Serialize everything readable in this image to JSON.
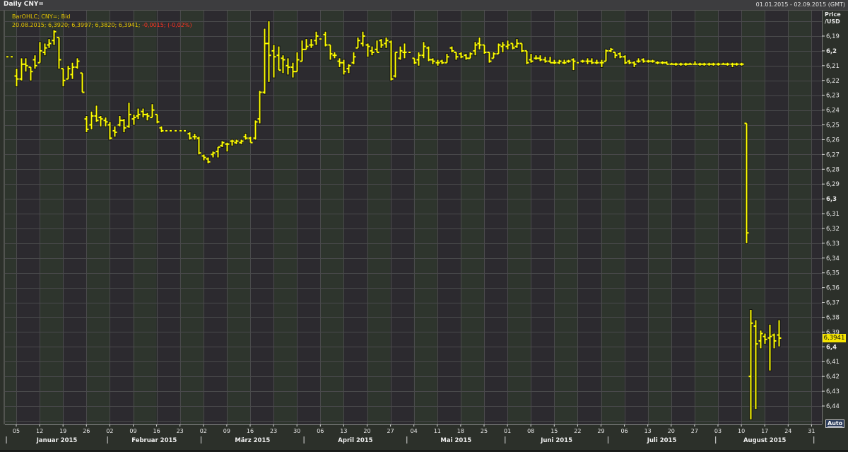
{
  "header": {
    "title": "Daily CNY=",
    "date_range": "01.01.2015 - 02.09.2015 (GMT)"
  },
  "legend": {
    "line1": "BarOHLC; CNY=; Bid",
    "line2_values": "20.08.2015; 6,3920; 6,3997; 6,3820; 6,3941;",
    "line2_change": "-0,0015; (-0,02%)"
  },
  "axis": {
    "title_line1": "Price",
    "title_line2": "/USD",
    "auto_button": "Auto",
    "last_price_label": "6,3941"
  },
  "colors": {
    "bar": "#ffff00",
    "change_negative": "#ff3322",
    "week_a": "#2c2a2f",
    "week_b": "#2e352d"
  },
  "chart_data": {
    "type": "ohlc",
    "title": "Daily CNY=",
    "ylabel": "Price /USD",
    "y_inverted": true,
    "ylim": [
      6.18,
      6.45
    ],
    "grid": true,
    "y_ticks": [
      "6,19",
      "6,2",
      "6,21",
      "6,22",
      "6,23",
      "6,24",
      "6,25",
      "6,26",
      "6,27",
      "6,28",
      "6,29",
      "6,3",
      "6,31",
      "6,32",
      "6,33",
      "6,34",
      "6,35",
      "6,36",
      "6,37",
      "6,38",
      "6,39",
      "6,4",
      "6,41",
      "6,42",
      "6,43",
      "6,44"
    ],
    "x_ticks": [
      "05",
      "12",
      "19",
      "26",
      "02",
      "09",
      "16",
      "23",
      "02",
      "09",
      "16",
      "23",
      "30",
      "06",
      "13",
      "20",
      "27",
      "04",
      "11",
      "18",
      "25",
      "01",
      "08",
      "15",
      "22",
      "29",
      "06",
      "13",
      "20",
      "27",
      "03",
      "10",
      "17",
      "24",
      "31"
    ],
    "months": [
      "Januar 2015",
      "Februar 2015",
      "März 2015",
      "April 2015",
      "Mai 2015",
      "Juni 2015",
      "Juli 2015",
      "August 2015"
    ],
    "ohlc_columns": [
      "date",
      "open",
      "high",
      "low",
      "close"
    ],
    "ohlc": [
      [
        "2015-01-01",
        6.204,
        6.204,
        6.204,
        6.204
      ],
      [
        "2015-01-02",
        6.204,
        6.204,
        6.204,
        6.204
      ],
      [
        "2015-01-05",
        6.217,
        6.224,
        6.212,
        6.219
      ],
      [
        "2015-01-06",
        6.219,
        6.22,
        6.205,
        6.209
      ],
      [
        "2015-01-07",
        6.209,
        6.214,
        6.205,
        6.21
      ],
      [
        "2015-01-08",
        6.211,
        6.22,
        6.211,
        6.214
      ],
      [
        "2015-01-09",
        6.206,
        6.212,
        6.203,
        6.21
      ],
      [
        "2015-01-12",
        6.208,
        6.208,
        6.194,
        6.2
      ],
      [
        "2015-01-13",
        6.201,
        6.203,
        6.195,
        6.198
      ],
      [
        "2015-01-14",
        6.196,
        6.198,
        6.192,
        6.195
      ],
      [
        "2015-01-15",
        6.193,
        6.196,
        6.186,
        6.187
      ],
      [
        "2015-01-16",
        6.191,
        6.212,
        6.191,
        6.206
      ],
      [
        "2015-01-19",
        6.212,
        6.224,
        6.212,
        6.22
      ],
      [
        "2015-01-20",
        6.219,
        6.219,
        6.21,
        6.212
      ],
      [
        "2015-01-21",
        6.216,
        6.219,
        6.208,
        6.211
      ],
      [
        "2015-01-22",
        6.211,
        6.212,
        6.205,
        6.207
      ],
      [
        "2015-01-23",
        6.215,
        6.228,
        6.215,
        6.228
      ],
      [
        "2015-01-26",
        6.246,
        6.255,
        6.244,
        6.253
      ],
      [
        "2015-01-27",
        6.25,
        6.253,
        6.241,
        6.244
      ],
      [
        "2015-01-28",
        6.244,
        6.248,
        6.237,
        6.247
      ],
      [
        "2015-01-29",
        6.245,
        6.251,
        6.244,
        6.246
      ],
      [
        "2015-01-30",
        6.247,
        6.251,
        6.245,
        6.248
      ],
      [
        "2015-02-02",
        6.25,
        6.26,
        6.248,
        6.259
      ],
      [
        "2015-02-03",
        6.254,
        6.258,
        6.251,
        6.255
      ],
      [
        "2015-02-04",
        6.25,
        6.251,
        6.244,
        6.247
      ],
      [
        "2015-02-05",
        6.247,
        6.255,
        6.246,
        6.252
      ],
      [
        "2015-02-06",
        6.251,
        6.252,
        6.235,
        6.243
      ],
      [
        "2015-02-09",
        6.246,
        6.25,
        6.243,
        6.245
      ],
      [
        "2015-02-10",
        6.244,
        6.246,
        6.239,
        6.243
      ],
      [
        "2015-02-11",
        6.241,
        6.245,
        6.239,
        6.243
      ],
      [
        "2015-02-12",
        6.243,
        6.247,
        6.242,
        6.244
      ],
      [
        "2015-02-13",
        6.245,
        6.245,
        6.236,
        6.24
      ],
      [
        "2015-02-16",
        6.243,
        6.249,
        6.243,
        6.248
      ],
      [
        "2015-02-17",
        6.252,
        6.255,
        6.251,
        6.254
      ],
      [
        "2015-02-18",
        6.254,
        6.254,
        6.254,
        6.254
      ],
      [
        "2015-02-19",
        6.254,
        6.254,
        6.254,
        6.254
      ],
      [
        "2015-02-20",
        6.254,
        6.254,
        6.254,
        6.254
      ],
      [
        "2015-02-23",
        6.254,
        6.254,
        6.254,
        6.254
      ],
      [
        "2015-02-24",
        6.254,
        6.254,
        6.254,
        6.254
      ],
      [
        "2015-02-25",
        6.256,
        6.26,
        6.255,
        6.259
      ],
      [
        "2015-02-26",
        6.258,
        6.26,
        6.256,
        6.258
      ],
      [
        "2015-02-27",
        6.259,
        6.27,
        6.258,
        6.269
      ],
      [
        "2015-03-02",
        6.271,
        6.274,
        6.27,
        6.272
      ],
      [
        "2015-03-03",
        6.273,
        6.276,
        6.272,
        6.275
      ],
      [
        "2015-03-04",
        6.27,
        6.272,
        6.268,
        6.269
      ],
      [
        "2015-03-05",
        6.268,
        6.272,
        6.265,
        6.265
      ],
      [
        "2015-03-06",
        6.264,
        6.265,
        6.261,
        6.262
      ],
      [
        "2015-03-09",
        6.263,
        6.268,
        6.262,
        6.263
      ],
      [
        "2015-03-10",
        6.261,
        6.264,
        6.26,
        6.261
      ],
      [
        "2015-03-11",
        6.262,
        6.263,
        6.26,
        6.261
      ],
      [
        "2015-03-12",
        6.262,
        6.263,
        6.26,
        6.261
      ],
      [
        "2015-03-13",
        6.258,
        6.26,
        6.256,
        6.259
      ],
      [
        "2015-03-16",
        6.259,
        6.262,
        6.258,
        6.262
      ],
      [
        "2015-03-17",
        6.259,
        6.26,
        6.247,
        6.248
      ],
      [
        "2015-03-18",
        6.246,
        6.249,
        6.227,
        6.228
      ],
      [
        "2015-03-19",
        6.228,
        6.229,
        6.185,
        6.195
      ],
      [
        "2015-03-20",
        6.195,
        6.221,
        6.18,
        6.203
      ],
      [
        "2015-03-23",
        6.2,
        6.218,
        6.196,
        6.204
      ],
      [
        "2015-03-24",
        6.203,
        6.213,
        6.197,
        6.213
      ],
      [
        "2015-03-25",
        6.205,
        6.215,
        6.203,
        6.206
      ],
      [
        "2015-03-26",
        6.21,
        6.216,
        6.205,
        6.211
      ],
      [
        "2015-03-27",
        6.211,
        6.218,
        6.208,
        6.214
      ],
      [
        "2015-03-30",
        6.214,
        6.214,
        6.201,
        6.206
      ],
      [
        "2015-03-31",
        6.207,
        6.207,
        6.193,
        6.199
      ],
      [
        "2015-04-01",
        6.199,
        6.199,
        6.192,
        6.197
      ],
      [
        "2015-04-02",
        6.196,
        6.198,
        6.192,
        6.196
      ],
      [
        "2015-04-03",
        6.193,
        6.196,
        6.187,
        6.19
      ],
      [
        "2015-04-06",
        6.192,
        6.192,
        6.192,
        6.192
      ],
      [
        "2015-04-07",
        6.189,
        6.197,
        6.187,
        6.196
      ],
      [
        "2015-04-08",
        6.196,
        6.206,
        6.196,
        6.202
      ],
      [
        "2015-04-09",
        6.203,
        6.205,
        6.201,
        6.203
      ],
      [
        "2015-04-10",
        6.207,
        6.211,
        6.205,
        6.208
      ],
      [
        "2015-04-13",
        6.208,
        6.216,
        6.206,
        6.214
      ],
      [
        "2015-04-14",
        6.212,
        6.215,
        6.209,
        6.21
      ],
      [
        "2015-04-15",
        6.208,
        6.209,
        6.201,
        6.204
      ],
      [
        "2015-04-16",
        6.198,
        6.198,
        6.191,
        6.193
      ],
      [
        "2015-04-17",
        6.195,
        6.197,
        6.187,
        6.19
      ],
      [
        "2015-04-20",
        6.196,
        6.204,
        6.195,
        6.197
      ],
      [
        "2015-04-21",
        6.2,
        6.203,
        6.197,
        6.201
      ],
      [
        "2015-04-22",
        6.199,
        6.201,
        6.193,
        6.201
      ],
      [
        "2015-04-23",
        6.193,
        6.198,
        6.192,
        6.196
      ],
      [
        "2015-04-24",
        6.195,
        6.198,
        6.191,
        6.193
      ],
      [
        "2015-04-27",
        6.194,
        6.22,
        6.193,
        6.219
      ],
      [
        "2015-04-28",
        6.217,
        6.218,
        6.201,
        6.201
      ],
      [
        "2015-04-29",
        6.205,
        6.206,
        6.197,
        6.2
      ],
      [
        "2015-04-30",
        6.201,
        6.205,
        6.195,
        6.201
      ],
      [
        "2015-05-01",
        6.201,
        6.201,
        6.201,
        6.201
      ],
      [
        "2015-05-04",
        6.205,
        6.209,
        6.205,
        6.208
      ],
      [
        "2015-05-05",
        6.206,
        6.21,
        6.201,
        6.203
      ],
      [
        "2015-05-06",
        6.203,
        6.205,
        6.194,
        6.197
      ],
      [
        "2015-05-07",
        6.198,
        6.207,
        6.197,
        6.206
      ],
      [
        "2015-05-08",
        6.206,
        6.209,
        6.205,
        6.207
      ],
      [
        "2015-05-11",
        6.208,
        6.21,
        6.206,
        6.208
      ],
      [
        "2015-05-12",
        6.207,
        6.209,
        6.206,
        6.208
      ],
      [
        "2015-05-13",
        6.208,
        6.208,
        6.202,
        6.204
      ],
      [
        "2015-05-14",
        6.198,
        6.201,
        6.197,
        6.2
      ],
      [
        "2015-05-15",
        6.201,
        6.206,
        6.201,
        6.204
      ],
      [
        "2015-05-18",
        6.202,
        6.205,
        6.201,
        6.204
      ],
      [
        "2015-05-19",
        6.203,
        6.206,
        6.202,
        6.205
      ],
      [
        "2015-05-20",
        6.205,
        6.205,
        6.201,
        6.202
      ],
      [
        "2015-05-21",
        6.2,
        6.203,
        6.194,
        6.196
      ],
      [
        "2015-05-22",
        6.195,
        6.199,
        6.191,
        6.196
      ],
      [
        "2015-05-25",
        6.196,
        6.202,
        6.196,
        6.201
      ],
      [
        "2015-05-26",
        6.201,
        6.208,
        6.201,
        6.207
      ],
      [
        "2015-05-27",
        6.205,
        6.205,
        6.201,
        6.202
      ],
      [
        "2015-05-28",
        6.202,
        6.202,
        6.195,
        6.196
      ],
      [
        "2015-05-29",
        6.197,
        6.201,
        6.194,
        6.196
      ],
      [
        "2015-06-01",
        6.197,
        6.199,
        6.193,
        6.196
      ],
      [
        "2015-06-02",
        6.195,
        6.199,
        6.195,
        6.198
      ],
      [
        "2015-06-03",
        6.197,
        6.198,
        6.192,
        6.195
      ],
      [
        "2015-06-04",
        6.195,
        6.201,
        6.195,
        6.2
      ],
      [
        "2015-06-05",
        6.2,
        6.209,
        6.2,
        6.208
      ],
      [
        "2015-06-08",
        6.206,
        6.208,
        6.202,
        6.207
      ],
      [
        "2015-06-09",
        6.205,
        6.206,
        6.203,
        6.205
      ],
      [
        "2015-06-10",
        6.205,
        6.207,
        6.203,
        6.206
      ],
      [
        "2015-06-11",
        6.206,
        6.208,
        6.204,
        6.207
      ],
      [
        "2015-06-12",
        6.207,
        6.208,
        6.204,
        6.208
      ],
      [
        "2015-06-15",
        6.208,
        6.209,
        6.206,
        6.208
      ],
      [
        "2015-06-16",
        6.208,
        6.209,
        6.206,
        6.207
      ],
      [
        "2015-06-17",
        6.208,
        6.209,
        6.206,
        6.208
      ],
      [
        "2015-06-18",
        6.207,
        6.208,
        6.206,
        6.207
      ],
      [
        "2015-06-19",
        6.206,
        6.213,
        6.205,
        6.207
      ],
      [
        "2015-06-22",
        6.208,
        6.208,
        6.208,
        6.208
      ],
      [
        "2015-06-23",
        6.207,
        6.208,
        6.206,
        6.207
      ],
      [
        "2015-06-24",
        6.207,
        6.209,
        6.205,
        6.207
      ],
      [
        "2015-06-25",
        6.207,
        6.209,
        6.205,
        6.208
      ],
      [
        "2015-06-26",
        6.208,
        6.209,
        6.206,
        6.208
      ],
      [
        "2015-06-29",
        6.208,
        6.211,
        6.206,
        6.208
      ],
      [
        "2015-06-30",
        6.207,
        6.207,
        6.199,
        6.2
      ],
      [
        "2015-07-01",
        6.2,
        6.201,
        6.198,
        6.199
      ],
      [
        "2015-07-02",
        6.201,
        6.205,
        6.201,
        6.203
      ],
      [
        "2015-07-03",
        6.202,
        6.205,
        6.201,
        6.204
      ],
      [
        "2015-07-06",
        6.204,
        6.209,
        6.203,
        6.208
      ],
      [
        "2015-07-07",
        6.207,
        6.209,
        6.206,
        6.208
      ],
      [
        "2015-07-08",
        6.208,
        6.211,
        6.207,
        6.209
      ],
      [
        "2015-07-09",
        6.207,
        6.208,
        6.205,
        6.207
      ],
      [
        "2015-07-10",
        6.206,
        6.208,
        6.205,
        6.207
      ],
      [
        "2015-07-13",
        6.207,
        6.208,
        6.206,
        6.207
      ],
      [
        "2015-07-14",
        6.207,
        6.208,
        6.206,
        6.207
      ],
      [
        "2015-07-15",
        6.208,
        6.209,
        6.207,
        6.208
      ],
      [
        "2015-07-16",
        6.208,
        6.209,
        6.207,
        6.208
      ],
      [
        "2015-07-17",
        6.208,
        6.209,
        6.207,
        6.209
      ],
      [
        "2015-07-20",
        6.209,
        6.209,
        6.208,
        6.209
      ],
      [
        "2015-07-21",
        6.209,
        6.21,
        6.208,
        6.209
      ],
      [
        "2015-07-22",
        6.209,
        6.21,
        6.208,
        6.209
      ],
      [
        "2015-07-23",
        6.209,
        6.21,
        6.208,
        6.209
      ],
      [
        "2015-07-24",
        6.209,
        6.209,
        6.208,
        6.209
      ],
      [
        "2015-07-27",
        6.209,
        6.209,
        6.207,
        6.209
      ],
      [
        "2015-07-28",
        6.209,
        6.21,
        6.208,
        6.209
      ],
      [
        "2015-07-29",
        6.209,
        6.21,
        6.208,
        6.209
      ],
      [
        "2015-07-30",
        6.209,
        6.21,
        6.208,
        6.209
      ],
      [
        "2015-07-31",
        6.209,
        6.21,
        6.208,
        6.209
      ],
      [
        "2015-08-03",
        6.209,
        6.21,
        6.208,
        6.209
      ],
      [
        "2015-08-04",
        6.209,
        6.209,
        6.208,
        6.209
      ],
      [
        "2015-08-05",
        6.209,
        6.21,
        6.208,
        6.209
      ],
      [
        "2015-08-06",
        6.209,
        6.211,
        6.208,
        6.209
      ],
      [
        "2015-08-07",
        6.209,
        6.21,
        6.208,
        6.209
      ],
      [
        "2015-08-10",
        6.209,
        6.21,
        6.208,
        6.209
      ],
      [
        "2015-08-11",
        6.249,
        6.33,
        6.249,
        6.323
      ],
      [
        "2015-08-12",
        6.42,
        6.449,
        6.375,
        6.384
      ],
      [
        "2015-08-13",
        6.386,
        6.442,
        6.382,
        6.398
      ],
      [
        "2015-08-14",
        6.396,
        6.401,
        6.389,
        6.391
      ],
      [
        "2015-08-17",
        6.393,
        6.398,
        6.391,
        6.395
      ],
      [
        "2015-08-18",
        6.394,
        6.416,
        6.385,
        6.393
      ],
      [
        "2015-08-19",
        6.392,
        6.401,
        6.391,
        6.396
      ],
      [
        "2015-08-20",
        6.392,
        6.3997,
        6.382,
        6.3941
      ]
    ]
  }
}
